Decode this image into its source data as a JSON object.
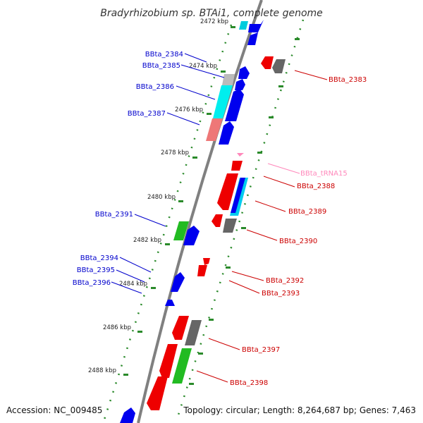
{
  "title": "Bradyrhizobium sp. BTAi1, complete genome",
  "accession": "Accession: NC_009485",
  "topology": "Topology: circular; Length: 8,264,687 bp; Genes: 7,463",
  "colors": {
    "backbone": "#808080",
    "plus_label": "#0000cc",
    "minus_label": "#cc0000",
    "trna_label": "#ff88bb",
    "ticks": "#2a8a2a"
  },
  "kbp_labels": [
    "2472 kbp",
    "2474 kbp",
    "2476 kbp",
    "2478 kbp",
    "2480 kbp",
    "2482 kbp",
    "2484 kbp",
    "2486 kbp",
    "2488 kbp"
  ],
  "plus_labels": [
    "BBta_2384",
    "BBta_2385",
    "BBta_2386",
    "BBta_2387",
    "BBta_2391",
    "BBta_2394",
    "BBta_2395",
    "BBta_2396"
  ],
  "minus_labels": [
    "BBta_2383",
    "BBta_tRNA15",
    "BBta_2388",
    "BBta_2389",
    "BBta_2390",
    "BBta_2392",
    "BBta_2393",
    "BBta_2397",
    "BBta_2398"
  ]
}
